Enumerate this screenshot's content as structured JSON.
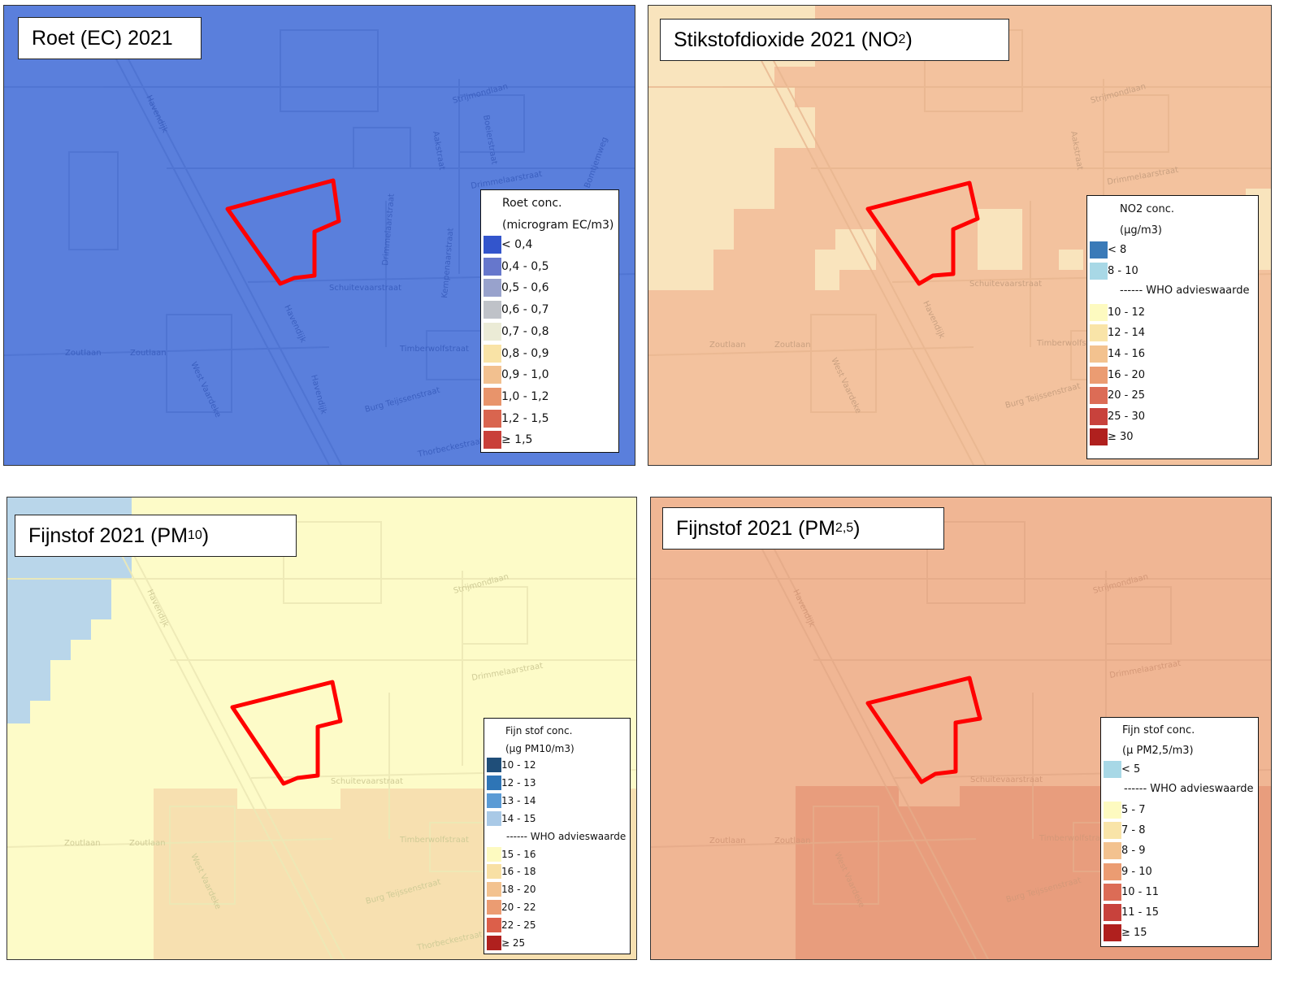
{
  "panels": {
    "ec": {
      "title": "Roet (EC) 2021",
      "legend": {
        "title_line1": "Roet conc.",
        "title_line2": "(microgram EC/m3)",
        "items": [
          {
            "label": "< 0,4",
            "color": "#3355cc"
          },
          {
            "label": "0,4 - 0,5",
            "color": "#6677cc"
          },
          {
            "label": "0,5 - 0,6",
            "color": "#98a2cc"
          },
          {
            "label": "0,6 - 0,7",
            "color": "#bfc2c8"
          },
          {
            "label": "0,7 - 0,8",
            "color": "#ebebd6"
          },
          {
            "label": "0,8 - 0,9",
            "color": "#f9e3a6"
          },
          {
            "label": "0,9 - 1,0",
            "color": "#f2c08f"
          },
          {
            "label": "1,0 - 1,2",
            "color": "#e8946b"
          },
          {
            "label": "1,2 - 1,5",
            "color": "#d9654f"
          },
          {
            "label": "≥ 1,5",
            "color": "#c9403a"
          }
        ]
      }
    },
    "no2": {
      "title_text": "Stikstofdioxide  2021 (NO",
      "title_sub": "2",
      "title_end": ")",
      "legend": {
        "title_line1": "NO2 conc.",
        "title_line2": "(µg/m3)",
        "who_label": "------ WHO advieswaarde",
        "items_before": [
          {
            "label": "< 8",
            "color": "#3a7ab8"
          },
          {
            "label": "8 - 10",
            "color": "#a8d8e6"
          }
        ],
        "items_after": [
          {
            "label": "10 - 12",
            "color": "#fdfac0"
          },
          {
            "label": "12 - 14",
            "color": "#f9e4a8"
          },
          {
            "label": "14 - 16",
            "color": "#f3c28f"
          },
          {
            "label": "16 - 20",
            "color": "#eb9c72"
          },
          {
            "label": "20 - 25",
            "color": "#dc6c56"
          },
          {
            "label": "25 - 30",
            "color": "#c8423c"
          },
          {
            "label": "≥ 30",
            "color": "#b0201e"
          }
        ]
      }
    },
    "pm10": {
      "title_text": "Fijnstof 2021 (PM",
      "title_sub": "10",
      "title_end": ")",
      "legend": {
        "title_line1": "Fijn stof conc.",
        "title_line2": "(µg PM10/m3)",
        "who_label": "------ WHO advieswaarde",
        "items_before": [
          {
            "label": "10 - 12",
            "color": "#1f4e79"
          },
          {
            "label": "12 - 13",
            "color": "#2e75b6"
          },
          {
            "label": "13 - 14",
            "color": "#5b9bd5"
          },
          {
            "label": "14 - 15",
            "color": "#a9c9e6"
          }
        ],
        "items_after": [
          {
            "label": "15 - 16",
            "color": "#fdfac0"
          },
          {
            "label": "16 - 18",
            "color": "#f8e0a4"
          },
          {
            "label": "18 - 20",
            "color": "#f3c28f"
          },
          {
            "label": "20 - 22",
            "color": "#eb9c72"
          },
          {
            "label": "22 - 25",
            "color": "#dc5f4a"
          },
          {
            "label": "≥ 25",
            "color": "#b0201e"
          }
        ]
      }
    },
    "pm25": {
      "title_text": "Fijnstof 2021 (PM",
      "title_sub": "2,5",
      "title_end": ")",
      "legend": {
        "title_line1": "Fijn stof conc.",
        "title_line2": "(µ PM2,5/m3)",
        "who_label": "------ WHO advieswaarde",
        "items_before": [
          {
            "label": "< 5",
            "color": "#a8d8e6"
          }
        ],
        "items_after": [
          {
            "label": "5 - 7",
            "color": "#fdfac0"
          },
          {
            "label": "7 - 8",
            "color": "#f9e4a8"
          },
          {
            "label": "8 - 9",
            "color": "#f3c28f"
          },
          {
            "label": "9 - 10",
            "color": "#eb9c72"
          },
          {
            "label": "10 - 11",
            "color": "#dc6c56"
          },
          {
            "label": "11 - 15",
            "color": "#c8423c"
          },
          {
            "label": "≥ 15",
            "color": "#b0201e"
          }
        ]
      }
    }
  },
  "map_labels": {
    "havendijk": "Havendijk",
    "strijmondlaan": "Strijmondlaan",
    "boeierstraat": "Boeierstraat",
    "aakstraat": "Aakstraat",
    "drimmelaarstraat": "Drimmelaarstraat",
    "bomtjemweg": "Bomtjemweg",
    "schuitevaarstraat": "Schuitevaarstraat",
    "kempenaarstraat": "Kempenaarstraat",
    "zoutlaan": "Zoutlaan",
    "timberwolfstraat": "Timberwolfstraat",
    "burg_teijssenstraat": "Burg Teijssenstraat",
    "thorbeckestraat": "Thorbeckestraat",
    "west_vaardeke": "West Vaardeke"
  },
  "colors": {
    "site_outline": "#ff0000",
    "ec_fill": "#5a7fdc",
    "no2_fill": "#f3c29e",
    "no2_low": "#f9e4bd",
    "pm10_fill": "#fdfbc8",
    "pm10_blue": "#b9d6ea",
    "pm10_orange": "#f7e0b0",
    "pm25_fill": "#f0b694",
    "pm25_dark": "#e89d7d"
  }
}
